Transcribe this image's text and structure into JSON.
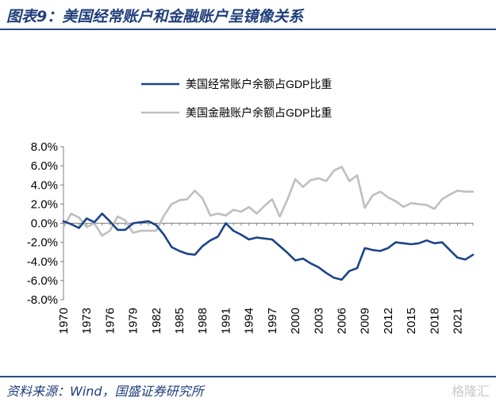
{
  "header": {
    "title": "图表9：美国经常账户和金融账户呈镜像关系"
  },
  "footer": {
    "source": "资料来源：Wind，国盛证券研究所",
    "watermark": "格隆汇"
  },
  "colors": {
    "accent": "#1f3e7a",
    "current_account": "#1b4389",
    "financial_account": "#bfbfbf"
  },
  "chart_data": {
    "type": "line",
    "ylim": [
      -8.0,
      8.0
    ],
    "yticks": [
      "8.0%",
      "6.0%",
      "4.0%",
      "2.0%",
      "0.0%",
      "-2.0%",
      "-4.0%",
      "-6.0%",
      "-8.0%"
    ],
    "xticks": [
      "1970",
      "1973",
      "1976",
      "1979",
      "1982",
      "1985",
      "1988",
      "1991",
      "1994",
      "1997",
      "2000",
      "2003",
      "2006",
      "2009",
      "2012",
      "2015",
      "2018",
      "2021"
    ],
    "legend_position": "top",
    "grid": false,
    "x": [
      1970,
      1971,
      1972,
      1973,
      1974,
      1975,
      1976,
      1977,
      1978,
      1979,
      1980,
      1981,
      1982,
      1983,
      1984,
      1985,
      1986,
      1987,
      1988,
      1989,
      1990,
      1991,
      1992,
      1993,
      1994,
      1995,
      1996,
      1997,
      1998,
      1999,
      2000,
      2001,
      2002,
      2003,
      2004,
      2005,
      2006,
      2007,
      2008,
      2009,
      2010,
      2011,
      2012,
      2013,
      2014,
      2015,
      2016,
      2017,
      2018,
      2019,
      2020,
      2021,
      2022,
      2023
    ],
    "series": [
      {
        "name": "美国经常账户余额占GDP比重",
        "values": [
          0.2,
          -0.1,
          -0.5,
          0.5,
          0.1,
          1.0,
          0.2,
          -0.7,
          -0.7,
          0.0,
          0.1,
          0.2,
          -0.2,
          -1.2,
          -2.5,
          -2.9,
          -3.2,
          -3.3,
          -2.4,
          -1.8,
          -1.4,
          0.0,
          -0.8,
          -1.2,
          -1.7,
          -1.5,
          -1.6,
          -1.7,
          -2.4,
          -3.1,
          -3.9,
          -3.7,
          -4.2,
          -4.6,
          -5.2,
          -5.7,
          -5.9,
          -5.0,
          -4.7,
          -2.6,
          -2.8,
          -2.9,
          -2.6,
          -2.0,
          -2.1,
          -2.2,
          -2.1,
          -1.8,
          -2.1,
          -2.0,
          -2.8,
          -3.6,
          -3.8,
          -3.3
        ]
      },
      {
        "name": "美国金融账户余额占GDP比重",
        "values": [
          -0.4,
          1.0,
          0.6,
          -0.4,
          0.0,
          -1.3,
          -0.8,
          0.7,
          0.3,
          -1.0,
          -0.8,
          -0.8,
          -0.8,
          0.8,
          2.0,
          2.4,
          2.5,
          3.4,
          2.6,
          0.8,
          1.0,
          0.8,
          1.4,
          1.2,
          1.7,
          1.0,
          1.8,
          2.5,
          0.7,
          2.5,
          4.6,
          3.8,
          4.5,
          4.7,
          4.4,
          5.5,
          5.9,
          4.4,
          5.0,
          1.6,
          2.9,
          3.3,
          2.7,
          2.3,
          1.7,
          2.1,
          2.0,
          1.9,
          1.5,
          2.5,
          3.0,
          3.4,
          3.3,
          3.3
        ]
      }
    ]
  }
}
